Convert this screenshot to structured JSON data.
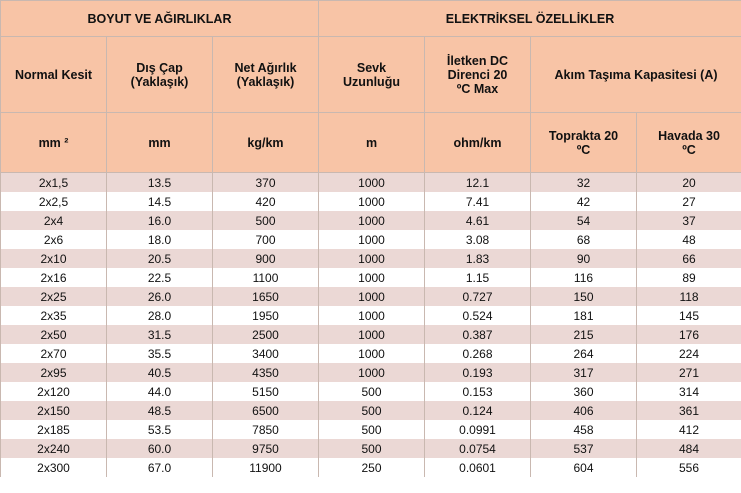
{
  "header": {
    "groups": [
      "BOYUT VE AĞIRLIKLAR",
      "ELEKTRİKSEL ÖZELLİKLER"
    ],
    "columns": [
      "Normal Kesit",
      "Dış Çap (Yaklaşık)",
      "Net Ağırlık (Yaklaşık)",
      "Sevk Uzunluğu",
      "İletken DC Direnci 20 ºC Max",
      "Akım Taşıma Kapasitesi (A)"
    ],
    "units": [
      "mm ²",
      "mm",
      "kg/km",
      "m",
      "ohm/km",
      "Toprakta 20 ºC",
      "Havada 30 ºC"
    ]
  },
  "table": {
    "rows": [
      [
        "2x1,5",
        "13.5",
        "370",
        "1000",
        "12.1",
        "32",
        "20"
      ],
      [
        "2x2,5",
        "14.5",
        "420",
        "1000",
        "7.41",
        "42",
        "27"
      ],
      [
        "2x4",
        "16.0",
        "500",
        "1000",
        "4.61",
        "54",
        "37"
      ],
      [
        "2x6",
        "18.0",
        "700",
        "1000",
        "3.08",
        "68",
        "48"
      ],
      [
        "2x10",
        "20.5",
        "900",
        "1000",
        "1.83",
        "90",
        "66"
      ],
      [
        "2x16",
        "22.5",
        "1100",
        "1000",
        "1.15",
        "116",
        "89"
      ],
      [
        "2x25",
        "26.0",
        "1650",
        "1000",
        "0.727",
        "150",
        "118"
      ],
      [
        "2x35",
        "28.0",
        "1950",
        "1000",
        "0.524",
        "181",
        "145"
      ],
      [
        "2x50",
        "31.5",
        "2500",
        "1000",
        "0.387",
        "215",
        "176"
      ],
      [
        "2x70",
        "35.5",
        "3400",
        "1000",
        "0.268",
        "264",
        "224"
      ],
      [
        "2x95",
        "40.5",
        "4350",
        "1000",
        "0.193",
        "317",
        "271"
      ],
      [
        "2x120",
        "44.0",
        "5150",
        "500",
        "0.153",
        "360",
        "314"
      ],
      [
        "2x150",
        "48.5",
        "6500",
        "500",
        "0.124",
        "406",
        "361"
      ],
      [
        "2x185",
        "53.5",
        "7850",
        "500",
        "0.0991",
        "458",
        "412"
      ],
      [
        "2x240",
        "60.0",
        "9750",
        "500",
        "0.0754",
        "537",
        "484"
      ],
      [
        "2x300",
        "67.0",
        "11900",
        "250",
        "0.0601",
        "604",
        "556"
      ]
    ]
  }
}
